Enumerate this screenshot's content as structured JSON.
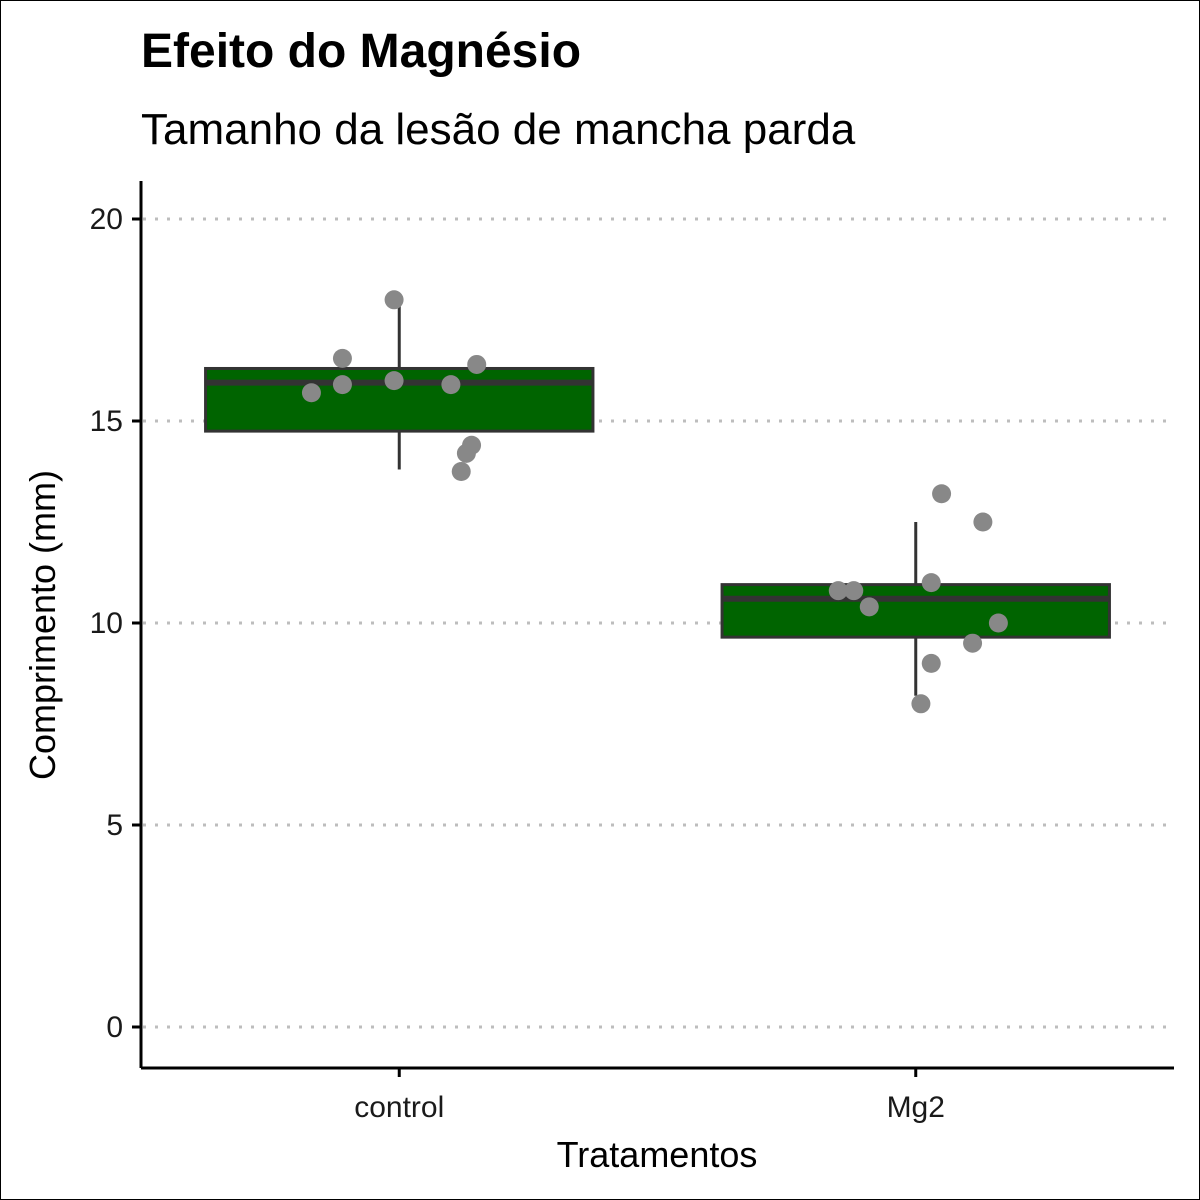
{
  "chart_data": {
    "type": "box",
    "title": "Efeito do Magnésio",
    "subtitle": "Tamanho da lesão de mancha parda",
    "xlabel": "Tratamentos",
    "ylabel": "Comprimento (mm)",
    "ylim": [
      -1,
      21
    ],
    "yticks": [
      "0",
      "5",
      "10",
      "15",
      "20"
    ],
    "ytick_values": [
      0,
      5,
      10,
      15,
      20
    ],
    "grid": "horizontal-dotted",
    "legend": "none",
    "box_fill": "#006400",
    "box_line": "#333333",
    "point_color": "#888888",
    "categories": [
      "control",
      "Mg2"
    ],
    "boxes": [
      {
        "category": "control",
        "whisker_low": 13.8,
        "q1": 14.75,
        "median": 15.95,
        "q3": 16.3,
        "whisker_high": 17.9,
        "points": [
          {
            "x": -0.17,
            "y": 15.7
          },
          {
            "x": -0.11,
            "y": 15.9
          },
          {
            "x": -0.11,
            "y": 16.55
          },
          {
            "x": -0.01,
            "y": 18.0
          },
          {
            "x": -0.01,
            "y": 16.0
          },
          {
            "x": 0.1,
            "y": 15.9
          },
          {
            "x": 0.15,
            "y": 16.4
          },
          {
            "x": 0.14,
            "y": 14.4
          },
          {
            "x": 0.13,
            "y": 14.2
          },
          {
            "x": 0.12,
            "y": 13.75
          }
        ]
      },
      {
        "category": "Mg2",
        "whisker_low": 8.2,
        "q1": 9.65,
        "median": 10.6,
        "q3": 10.95,
        "whisker_high": 12.5,
        "points": [
          {
            "x": -0.15,
            "y": 10.8
          },
          {
            "x": -0.12,
            "y": 10.8
          },
          {
            "x": -0.09,
            "y": 10.4
          },
          {
            "x": 0.05,
            "y": 13.2
          },
          {
            "x": 0.13,
            "y": 12.5
          },
          {
            "x": 0.03,
            "y": 11.0
          },
          {
            "x": 0.16,
            "y": 10.0
          },
          {
            "x": 0.11,
            "y": 9.5
          },
          {
            "x": 0.03,
            "y": 9.0
          },
          {
            "x": 0.01,
            "y": 8.0
          }
        ]
      }
    ]
  }
}
